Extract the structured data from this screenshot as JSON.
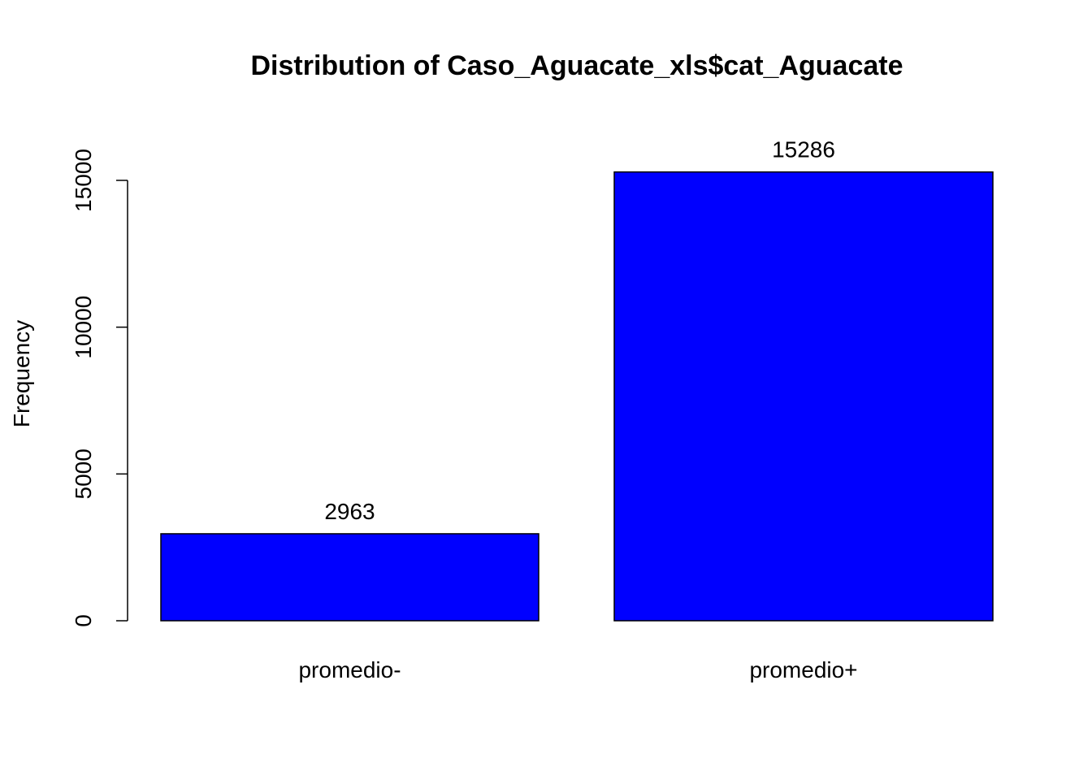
{
  "chart_data": {
    "type": "bar",
    "title": "Distribution of Caso_Aguacate_xls$cat_Aguacate",
    "xlabel": "",
    "ylabel": "Frequency",
    "categories": [
      "promedio-",
      "promedio+"
    ],
    "values": [
      2963,
      15286
    ],
    "data_labels": [
      "2963",
      "15286"
    ],
    "ylim": [
      0,
      15000
    ],
    "yticks": [
      0,
      5000,
      10000,
      15000
    ],
    "ytick_labels": [
      "0",
      "5000",
      "10000",
      "15000"
    ],
    "bar_color": "#0000FF",
    "bar_border_color": "#000000",
    "grid": false,
    "legend": "none"
  }
}
